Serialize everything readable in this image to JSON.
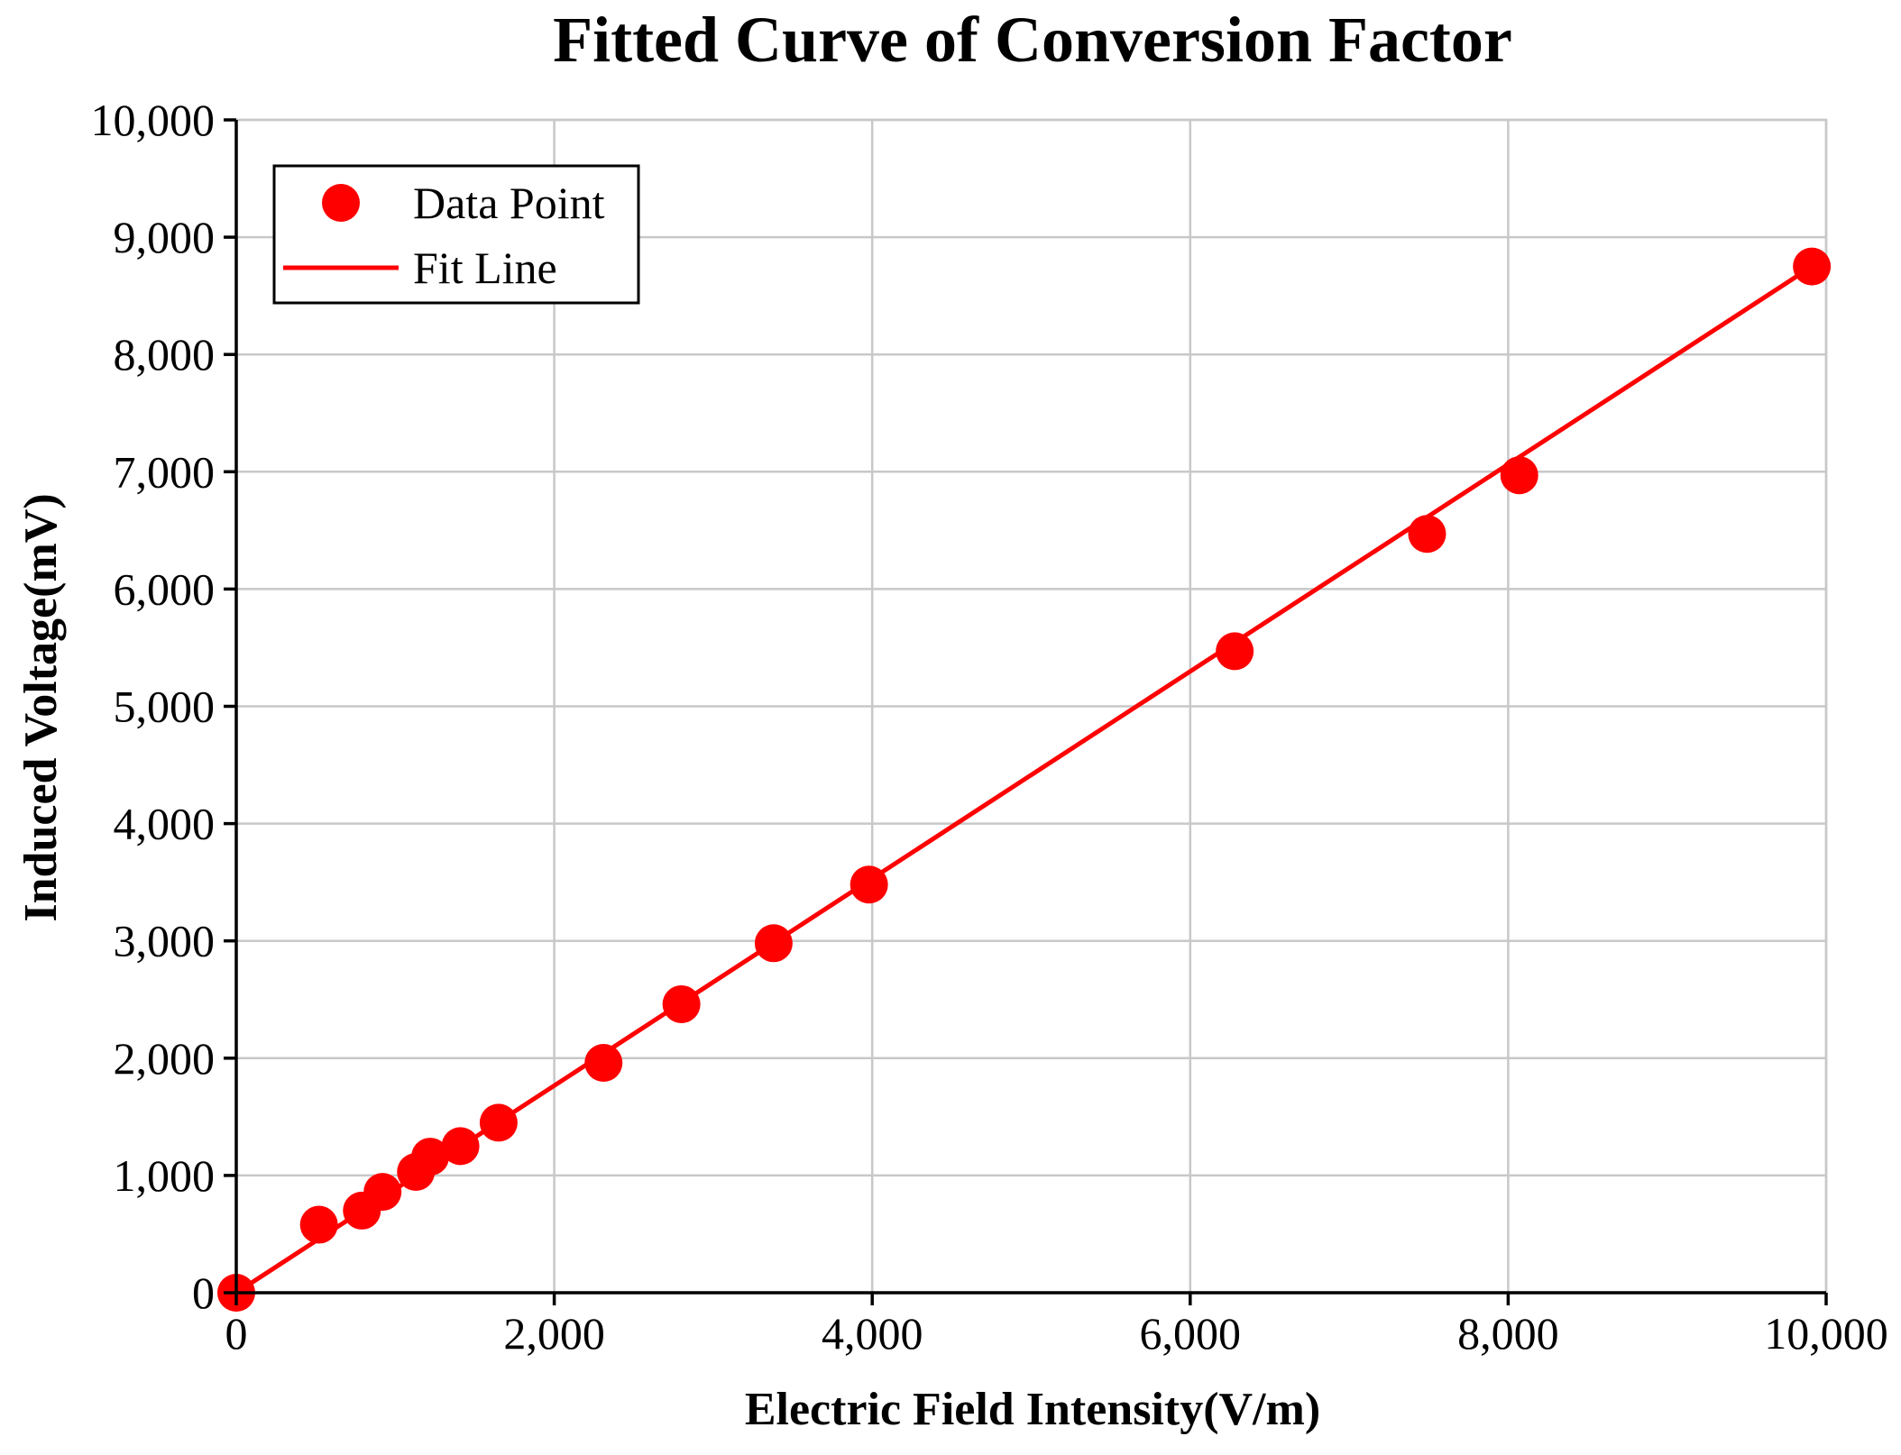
{
  "chart_data": {
    "type": "scatter",
    "title": "Fitted Curve of Conversion Factor",
    "xlabel": "Electric Field Intensity(V/m)",
    "ylabel": "Induced Voltage(mV)",
    "xlim": [
      0,
      10000
    ],
    "ylim": [
      0,
      10000
    ],
    "x_ticks": [
      0,
      2000,
      4000,
      6000,
      8000,
      10000
    ],
    "y_ticks": [
      0,
      1000,
      2000,
      3000,
      4000,
      5000,
      6000,
      7000,
      8000,
      9000,
      10000
    ],
    "x_tick_labels": [
      "0",
      "2,000",
      "4,000",
      "6,000",
      "8,000",
      "10,000"
    ],
    "y_tick_labels": [
      "0",
      "1,000",
      "2,000",
      "3,000",
      "4,000",
      "5,000",
      "6,000",
      "7,000",
      "8,000",
      "9,000",
      "10,000"
    ],
    "grid": true,
    "legend_position": "top-left",
    "color": "#ff0000",
    "series": [
      {
        "name": "Data Point",
        "kind": "scatter",
        "x": [
          0,
          520,
          790,
          920,
          1130,
          1220,
          1410,
          1650,
          2310,
          2800,
          3380,
          3980,
          6280,
          7490,
          8070,
          9910
        ],
        "y": [
          0,
          580,
          700,
          860,
          1030,
          1160,
          1250,
          1450,
          1960,
          2460,
          2980,
          3480,
          5470,
          6470,
          6970,
          8750
        ]
      },
      {
        "name": "Fit Line",
        "kind": "line",
        "x": [
          0,
          9910
        ],
        "y": [
          0,
          8750
        ]
      }
    ]
  }
}
